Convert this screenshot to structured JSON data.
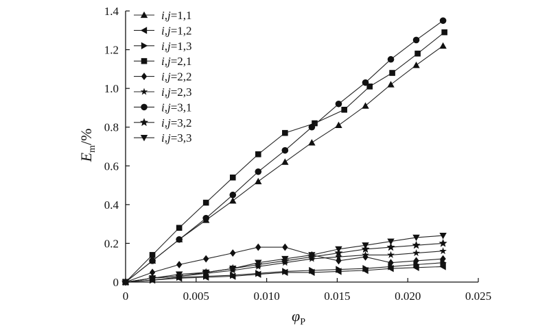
{
  "chart_data": {
    "type": "line",
    "xlabel": "φ",
    "xlabel_sub": "P",
    "ylabel": "E",
    "ylabel_sub": "m",
    "ylabel_suffix": "/%",
    "xlim": [
      0,
      0.025
    ],
    "ylim": [
      0,
      1.4
    ],
    "xticks": [
      "0",
      "0.005",
      "0.010",
      "0.015",
      "0.020",
      "0.025"
    ],
    "yticks": [
      "0",
      "0.2",
      "0.4",
      "0.6",
      "0.8",
      "1.0",
      "1.2",
      "1.4"
    ],
    "grid": false,
    "legend_position": "top-left",
    "series": [
      {
        "name": "i,j=1,1",
        "marker": "triangle-up",
        "x": [
          0,
          0.0019,
          0.0038,
          0.0057,
          0.0076,
          0.0094,
          0.0113,
          0.0132,
          0.0151,
          0.017,
          0.0188,
          0.0206,
          0.0225
        ],
        "y": [
          0,
          0.11,
          0.22,
          0.32,
          0.42,
          0.52,
          0.62,
          0.72,
          0.81,
          0.91,
          1.02,
          1.12,
          1.22
        ]
      },
      {
        "name": "i,j=1,2",
        "marker": "triangle-left",
        "x": [
          0,
          0.0019,
          0.0038,
          0.0057,
          0.0076,
          0.0094,
          0.0113,
          0.0132,
          0.0151,
          0.017,
          0.0188,
          0.0206,
          0.0225
        ],
        "y": [
          0,
          0.01,
          0.02,
          0.025,
          0.03,
          0.04,
          0.05,
          0.05,
          0.055,
          0.06,
          0.07,
          0.075,
          0.08
        ]
      },
      {
        "name": "i,j=1,3",
        "marker": "triangle-right",
        "x": [
          0,
          0.0019,
          0.0038,
          0.0057,
          0.0076,
          0.0094,
          0.0113,
          0.0132,
          0.0151,
          0.017,
          0.0188,
          0.0206,
          0.0225
        ],
        "y": [
          0,
          0.01,
          0.025,
          0.03,
          0.035,
          0.045,
          0.055,
          0.06,
          0.065,
          0.07,
          0.08,
          0.09,
          0.1
        ]
      },
      {
        "name": "i,j=2,1",
        "marker": "square",
        "x": [
          0,
          0.0019,
          0.0038,
          0.0057,
          0.0076,
          0.0094,
          0.0113,
          0.0134,
          0.0155,
          0.0173,
          0.0189,
          0.0207,
          0.0226
        ],
        "y": [
          0,
          0.14,
          0.28,
          0.41,
          0.54,
          0.66,
          0.77,
          0.82,
          0.89,
          1.01,
          1.08,
          1.18,
          1.29
        ]
      },
      {
        "name": "i,j=2,2",
        "marker": "diamond",
        "x": [
          0,
          0.0019,
          0.0038,
          0.0057,
          0.0076,
          0.0094,
          0.0113,
          0.0132,
          0.0151,
          0.017,
          0.0188,
          0.0206,
          0.0225
        ],
        "y": [
          0,
          0.05,
          0.09,
          0.12,
          0.15,
          0.18,
          0.18,
          0.14,
          0.11,
          0.13,
          0.1,
          0.11,
          0.12
        ]
      },
      {
        "name": "i,j=2,3",
        "marker": "star",
        "x": [
          0,
          0.0019,
          0.0038,
          0.0057,
          0.0076,
          0.0094,
          0.0113,
          0.0132,
          0.0151,
          0.017,
          0.0188,
          0.0206,
          0.0225
        ],
        "y": [
          0,
          0.02,
          0.03,
          0.045,
          0.06,
          0.08,
          0.1,
          0.12,
          0.13,
          0.14,
          0.14,
          0.15,
          0.16
        ]
      },
      {
        "name": "i,j=3,1",
        "marker": "circle",
        "x": [
          0,
          0.0019,
          0.0038,
          0.0057,
          0.0076,
          0.0094,
          0.0113,
          0.0132,
          0.0151,
          0.017,
          0.0188,
          0.0206,
          0.0225
        ],
        "y": [
          0,
          0.11,
          0.22,
          0.33,
          0.45,
          0.57,
          0.68,
          0.8,
          0.92,
          1.03,
          1.15,
          1.25,
          1.35
        ]
      },
      {
        "name": "i,j=3,2",
        "marker": "star-bold",
        "x": [
          0,
          0.0019,
          0.0038,
          0.0057,
          0.0076,
          0.0094,
          0.0113,
          0.0132,
          0.0151,
          0.017,
          0.0188,
          0.0206,
          0.0225
        ],
        "y": [
          0,
          0.11,
          0.22,
          0.33,
          0.45,
          0.57,
          0.68,
          0.8,
          0.92,
          1.03,
          1.15,
          1.25,
          1.35
        ],
        "y_low": [
          0,
          0.02,
          0.03,
          0.05,
          0.07,
          0.09,
          0.11,
          0.13,
          0.15,
          0.17,
          0.18,
          0.19,
          0.2
        ]
      },
      {
        "name": "i,j=3,3",
        "marker": "triangle-down",
        "x": [
          0,
          0.0019,
          0.0038,
          0.0057,
          0.0076,
          0.0094,
          0.0113,
          0.0132,
          0.0151,
          0.017,
          0.0188,
          0.0206,
          0.0225
        ],
        "y": [
          0,
          0.02,
          0.04,
          0.05,
          0.07,
          0.1,
          0.12,
          0.14,
          0.17,
          0.19,
          0.21,
          0.23,
          0.24
        ]
      }
    ]
  }
}
